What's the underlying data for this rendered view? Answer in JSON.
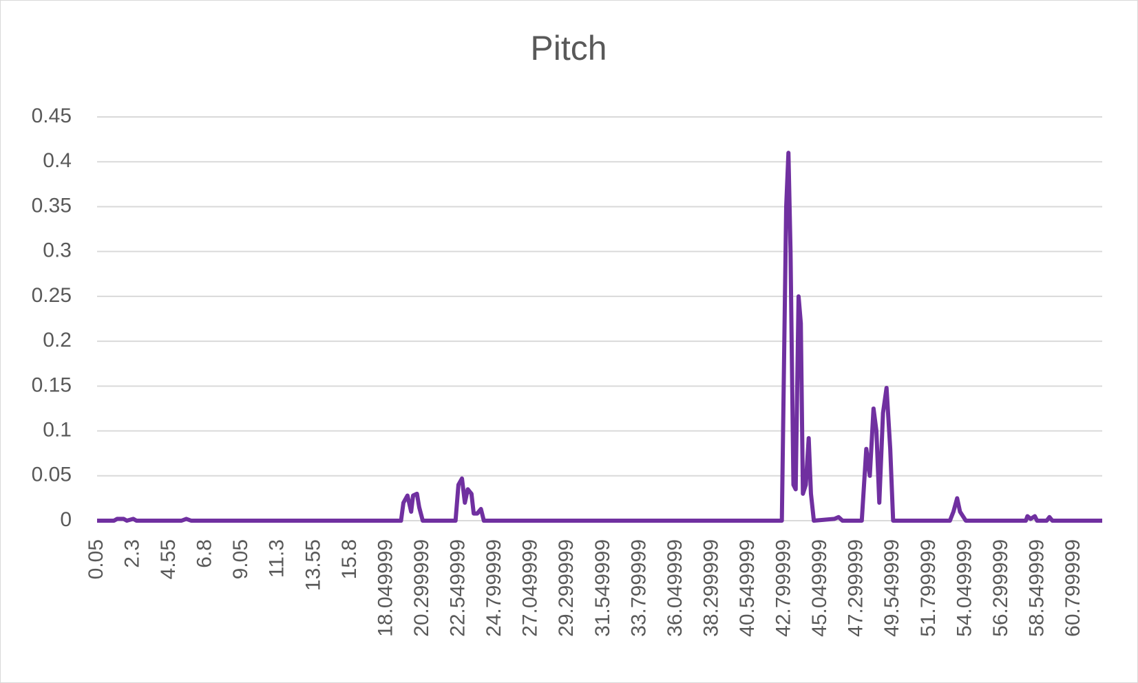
{
  "chart_data": {
    "type": "line",
    "title": "Pitch",
    "x": [
      0.05,
      1.1,
      1.3,
      1.7,
      1.9,
      2.3,
      2.5,
      5.3,
      5.6,
      5.9,
      18.95,
      19.1,
      19.35,
      19.58,
      19.7,
      19.94,
      20.08,
      20.3,
      22.34,
      22.52,
      22.74,
      22.92,
      23.1,
      23.33,
      23.47,
      23.69,
      23.92,
      24.1,
      42.63,
      42.9,
      43.04,
      43.17,
      43.35,
      43.49,
      43.67,
      43.81,
      43.94,
      44.12,
      44.3,
      44.44,
      44.62,
      45.9,
      46.16,
      46.4,
      47.6,
      47.88,
      48.1,
      48.33,
      48.51,
      48.69,
      48.92,
      49.14,
      49.37,
      49.55,
      53.08,
      53.3,
      53.53,
      53.71,
      53.89,
      54.07,
      57.8,
      57.9,
      58.1,
      58.36,
      58.5,
      59.1,
      59.27,
      59.45,
      62.55
    ],
    "series": [
      {
        "name": "Pitch",
        "color": "#7030a0",
        "values": [
          0,
          0,
          0.002,
          0.002,
          0,
          0.002,
          0,
          0,
          0.002,
          0,
          0,
          0.02,
          0.028,
          0.01,
          0.028,
          0.03,
          0.015,
          0,
          0,
          0.04,
          0.047,
          0.02,
          0.035,
          0.03,
          0.008,
          0.008,
          0.013,
          0,
          0,
          0.35,
          0.41,
          0.3,
          0.04,
          0.035,
          0.25,
          0.22,
          0.03,
          0.04,
          0.092,
          0.03,
          0,
          0.002,
          0.004,
          0,
          0,
          0.08,
          0.05,
          0.125,
          0.1,
          0.02,
          0.12,
          0.148,
          0.08,
          0,
          0,
          0.01,
          0.025,
          0.01,
          0.005,
          0,
          0,
          0.005,
          0.002,
          0.005,
          0,
          0,
          0.004,
          0,
          0
        ]
      }
    ],
    "xlim": [
      0.05,
      62.55
    ],
    "xticks": [
      0.05,
      2.3,
      4.55,
      6.8,
      9.05,
      11.3,
      13.55,
      15.8,
      18.049999,
      20.299999,
      22.549999,
      24.799999,
      27.049999,
      29.299999,
      31.549999,
      33.799999,
      36.049999,
      38.299999,
      40.549999,
      42.799999,
      45.049999,
      47.299999,
      49.549999,
      51.799999,
      54.049999,
      56.299999,
      58.549999,
      60.799999
    ],
    "ylim": [
      0,
      0.45
    ],
    "yticks": [
      0,
      0.05,
      0.1,
      0.15,
      0.2,
      0.25,
      0.3,
      0.35,
      0.4,
      0.45
    ],
    "grid": true
  }
}
